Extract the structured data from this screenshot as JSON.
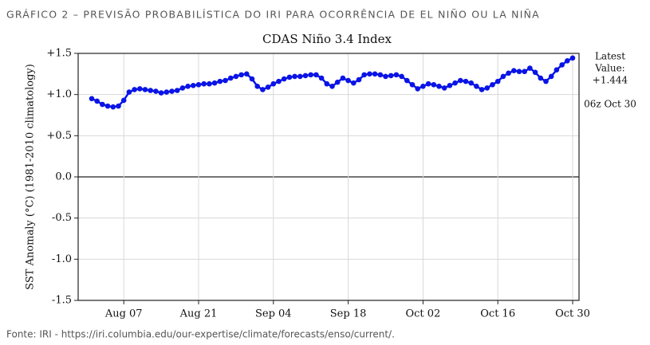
{
  "header": "GRÁFICO 2 – PREVISÃO PROBABILÍSTICA DO IRI PARA OCORRÊNCIA DE EL NIÑO OU LA NIÑA",
  "footer": "Fonte: IRI - https://iri.columbia.edu/our-expertise/climate/forecasts/enso/current/.",
  "chart_data": {
    "type": "line",
    "title": "CDAS Niño 3.4 Index",
    "y_label": "SST Anomaly (°C) (1981-2010 climatology)",
    "annotations": [
      "Latest",
      "Value:",
      "+1.444",
      "06z Oct 30"
    ],
    "x": [
      "Aug 01",
      "Aug 02",
      "Aug 03",
      "Aug 04",
      "Aug 05",
      "Aug 06",
      "Aug 07",
      "Aug 08",
      "Aug 09",
      "Aug 10",
      "Aug 11",
      "Aug 12",
      "Aug 13",
      "Aug 14",
      "Aug 15",
      "Aug 16",
      "Aug 17",
      "Aug 18",
      "Aug 19",
      "Aug 20",
      "Aug 21",
      "Aug 22",
      "Aug 23",
      "Aug 24",
      "Aug 25",
      "Aug 26",
      "Aug 27",
      "Aug 28",
      "Aug 29",
      "Aug 30",
      "Aug 31",
      "Sep 01",
      "Sep 02",
      "Sep 03",
      "Sep 04",
      "Sep 05",
      "Sep 06",
      "Sep 07",
      "Sep 08",
      "Sep 09",
      "Sep 10",
      "Sep 11",
      "Sep 12",
      "Sep 13",
      "Sep 14",
      "Sep 15",
      "Sep 16",
      "Sep 17",
      "Sep 18",
      "Sep 19",
      "Sep 20",
      "Sep 21",
      "Sep 22",
      "Sep 23",
      "Sep 24",
      "Sep 25",
      "Sep 26",
      "Sep 27",
      "Sep 28",
      "Sep 29",
      "Sep 30",
      "Oct 01",
      "Oct 02",
      "Oct 03",
      "Oct 04",
      "Oct 05",
      "Oct 06",
      "Oct 07",
      "Oct 08",
      "Oct 09",
      "Oct 10",
      "Oct 11",
      "Oct 12",
      "Oct 13",
      "Oct 14",
      "Oct 15",
      "Oct 16",
      "Oct 17",
      "Oct 18",
      "Oct 19",
      "Oct 20",
      "Oct 21",
      "Oct 22",
      "Oct 23",
      "Oct 24",
      "Oct 25",
      "Oct 26",
      "Oct 27",
      "Oct 28",
      "Oct 29",
      "Oct 30"
    ],
    "series": [
      {
        "name": "CDAS Niño 3.4",
        "color": "#0a14e6",
        "values": [
          0.95,
          0.92,
          0.88,
          0.86,
          0.85,
          0.86,
          0.93,
          1.03,
          1.06,
          1.07,
          1.06,
          1.05,
          1.04,
          1.02,
          1.03,
          1.04,
          1.05,
          1.08,
          1.1,
          1.11,
          1.12,
          1.13,
          1.13,
          1.14,
          1.16,
          1.17,
          1.2,
          1.22,
          1.24,
          1.25,
          1.19,
          1.1,
          1.06,
          1.09,
          1.13,
          1.16,
          1.19,
          1.21,
          1.22,
          1.22,
          1.23,
          1.24,
          1.24,
          1.2,
          1.13,
          1.1,
          1.15,
          1.2,
          1.17,
          1.14,
          1.18,
          1.24,
          1.25,
          1.25,
          1.24,
          1.22,
          1.23,
          1.24,
          1.22,
          1.17,
          1.12,
          1.07,
          1.1,
          1.13,
          1.12,
          1.1,
          1.08,
          1.11,
          1.14,
          1.17,
          1.16,
          1.14,
          1.1,
          1.06,
          1.08,
          1.12,
          1.16,
          1.22,
          1.26,
          1.29,
          1.28,
          1.28,
          1.32,
          1.27,
          1.2,
          1.16,
          1.22,
          1.3,
          1.36,
          1.41,
          1.444
        ]
      }
    ],
    "xticks": [
      "Aug 07",
      "Aug 21",
      "Sep 04",
      "Sep 18",
      "Oct 02",
      "Oct 16",
      "Oct 30"
    ],
    "ylim": [
      -1.5,
      1.5
    ],
    "yticks": [
      {
        "value": 1.5,
        "label": "+1.5"
      },
      {
        "value": 1.0,
        "label": "+1.0"
      },
      {
        "value": 0.5,
        "label": "+0.5"
      },
      {
        "value": 0,
        "label": "0.0"
      },
      -0.5,
      {
        "value": -1.0,
        "label": "-1.0"
      },
      -1.5
    ],
    "grid": true
  }
}
